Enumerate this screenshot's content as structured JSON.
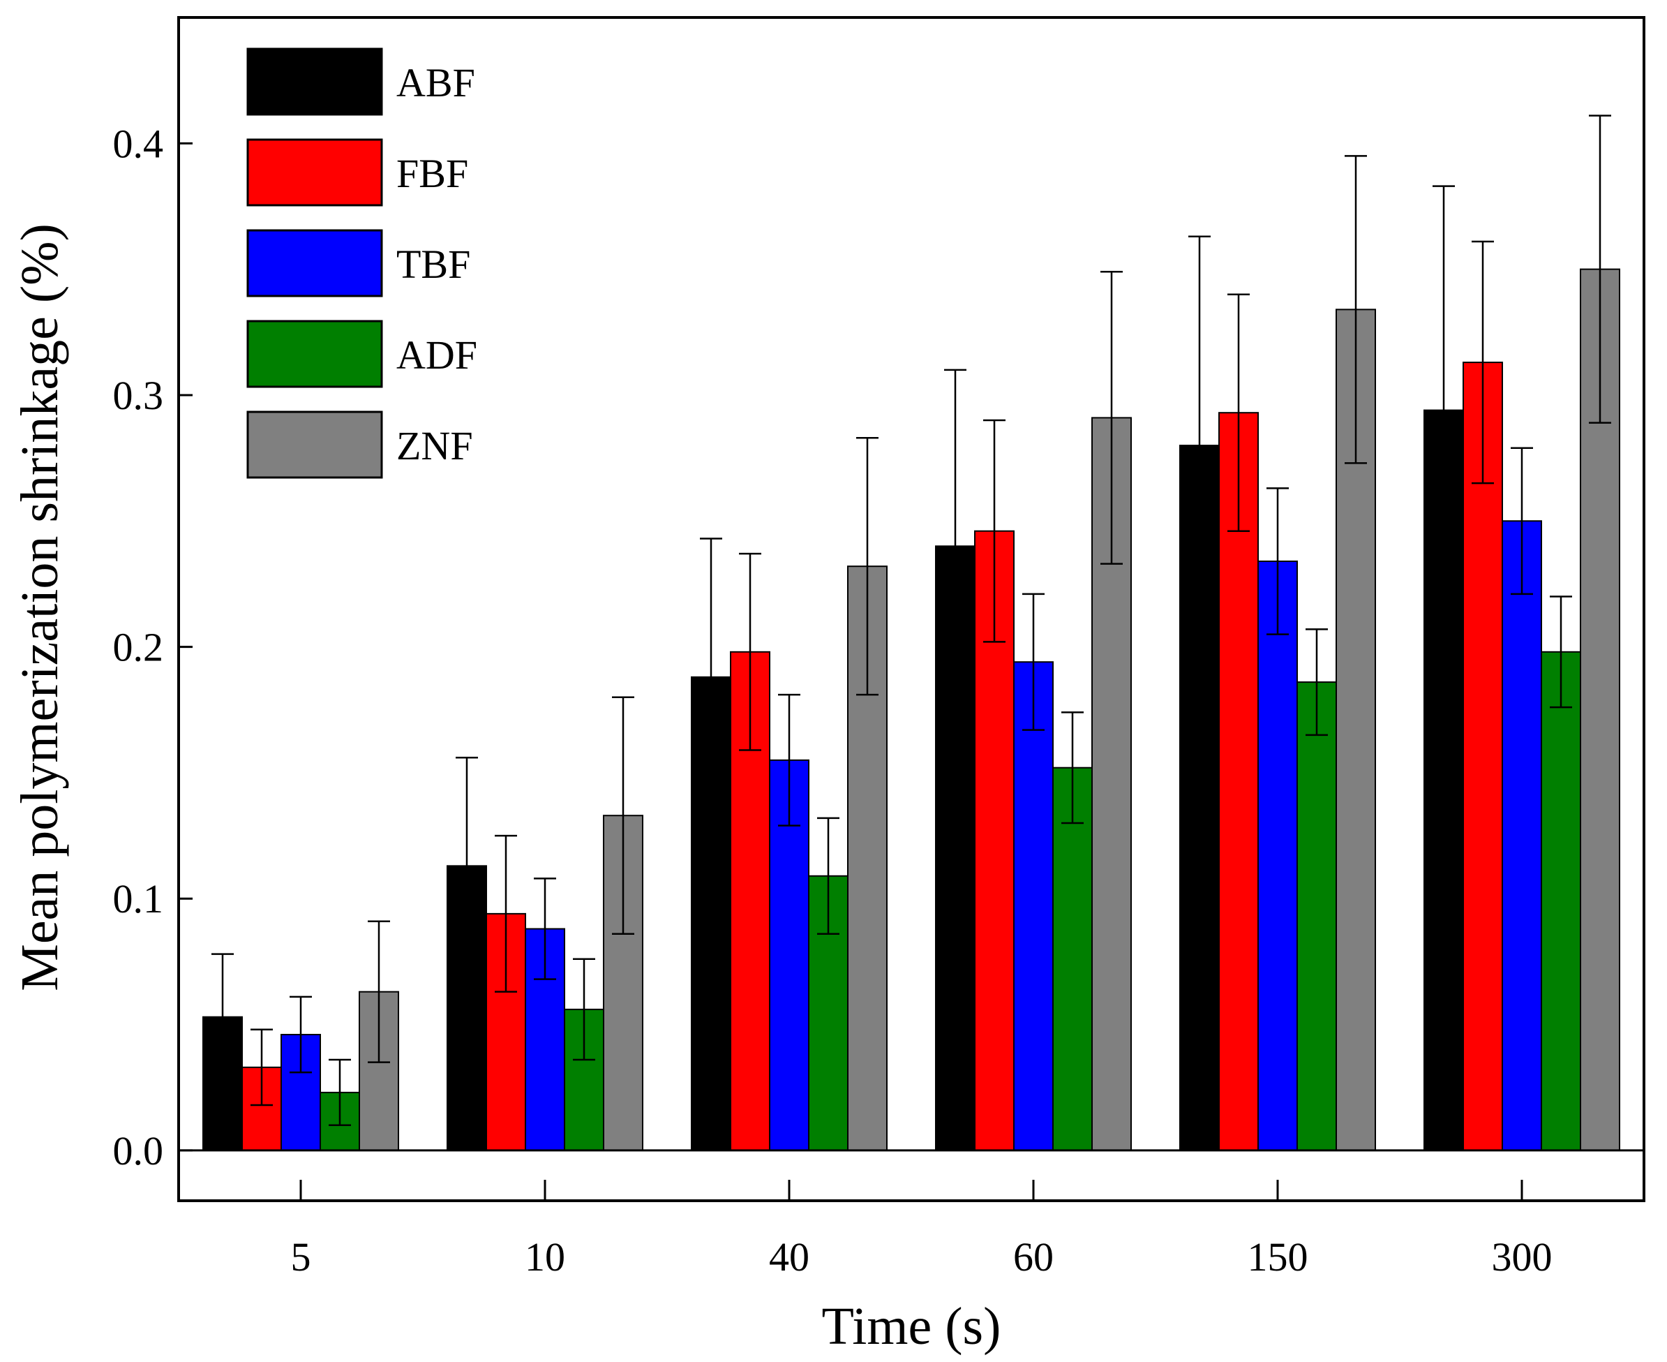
{
  "chart_data": {
    "type": "bar",
    "title": "",
    "xlabel": "Time (s)",
    "ylabel": "Mean polymerization shrinkage (%)",
    "categories": [
      "5",
      "10",
      "40",
      "60",
      "150",
      "300"
    ],
    "ylim": [
      -0.02,
      0.45
    ],
    "yticks": [
      "0.0",
      "0.1",
      "0.2",
      "0.3",
      "0.4"
    ],
    "grid": false,
    "legend_position": "top-left",
    "series": [
      {
        "name": "ABF",
        "color": "#000000",
        "values": [
          0.053,
          0.113,
          0.188,
          0.24,
          0.28,
          0.294
        ],
        "errors": [
          0.025,
          0.043,
          0.055,
          0.07,
          0.083,
          0.089
        ]
      },
      {
        "name": "FBF",
        "color": "#ff0000",
        "values": [
          0.033,
          0.094,
          0.198,
          0.246,
          0.293,
          0.313
        ],
        "errors": [
          0.015,
          0.031,
          0.039,
          0.044,
          0.047,
          0.048
        ]
      },
      {
        "name": "TBF",
        "color": "#0000ff",
        "values": [
          0.046,
          0.088,
          0.155,
          0.194,
          0.234,
          0.25
        ],
        "errors": [
          0.015,
          0.02,
          0.026,
          0.027,
          0.029,
          0.029
        ]
      },
      {
        "name": "ADF",
        "color": "#007f00",
        "values": [
          0.023,
          0.056,
          0.109,
          0.152,
          0.186,
          0.198
        ],
        "errors": [
          0.013,
          0.02,
          0.023,
          0.022,
          0.021,
          0.022
        ]
      },
      {
        "name": "ZNF",
        "color": "#808080",
        "values": [
          0.063,
          0.133,
          0.232,
          0.291,
          0.334,
          0.35
        ],
        "errors": [
          0.028,
          0.047,
          0.051,
          0.058,
          0.061,
          0.061
        ]
      }
    ]
  }
}
